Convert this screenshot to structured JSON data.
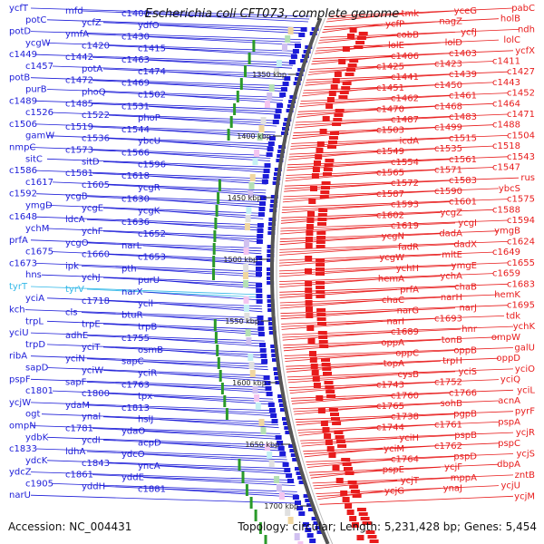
{
  "title": "Escherichia coli CFT073, complete genome",
  "footer": {
    "accession": "Accession: NC_004431",
    "summary": "Topology: circular; Length: 5,231,428 bp; Genes: 5,454"
  },
  "colors": {
    "reverse_strand": "#1c1cd8",
    "forward_strand": "#e81c1c",
    "highlight_gene": "#33b8e8",
    "backbone": "#555555"
  },
  "kbp_ticks": [
    "1350 kbp",
    "1400 kbp",
    "1450 kbp",
    "1500 kbp",
    "1550 kbp",
    "1600 kbp",
    "1650 kbp",
    "1700 kbp"
  ],
  "left_genes": [
    "ycfT",
    "mfd",
    "c1400",
    "potC",
    "ycfZ",
    "ydfO",
    "potD",
    "ymfA",
    "c1430",
    "ycgW",
    "c1420",
    "c1415",
    "c1449",
    "c1442",
    "c1463",
    "c1457",
    "potA",
    "c1474",
    "potB",
    "c1472",
    "c1469",
    "purB",
    "phoQ",
    "c1502",
    "c1489",
    "c1485",
    "c1531",
    "c1526",
    "c1522",
    "phoP",
    "c1506",
    "c1519",
    "c1544",
    "gamW",
    "c1536",
    "ybcU",
    "nmpC",
    "c1573",
    "c1566",
    "sitC",
    "sitD",
    "c1596",
    "c1586",
    "c1581",
    "c1618",
    "c1617",
    "c1605",
    "ycgR",
    "c1592",
    "ycgB",
    "c1630",
    "ymgD",
    "ycgE",
    "ycgK",
    "c1648",
    "ldcA",
    "c1636",
    "ychM",
    "ychF",
    "c1652",
    "prfA",
    "ycgO",
    "narL",
    "c1675",
    "c1660",
    "c1653",
    "c1673",
    "ipk",
    "pth",
    "hns",
    "ychJ",
    "purU",
    "tyrT",
    "tyrV",
    "narX",
    "yciA",
    "c1718",
    "ycil",
    "kch",
    "cls",
    "btuR",
    "trpL",
    "trpE",
    "trpB",
    "yciU",
    "adhE",
    "c1755",
    "trpD",
    "yciT",
    "osmB",
    "ribA",
    "yciN",
    "sapC",
    "sapD",
    "yciW",
    "yciR",
    "pspF",
    "sapF",
    "c1763",
    "c1801",
    "c1800",
    "tpx",
    "ycjW",
    "ydaM",
    "c1813",
    "ogt",
    "ynal",
    "hslJ",
    "ompN",
    "c1781",
    "ydaO",
    "ydbK",
    "ycdI",
    "acpD",
    "c1833",
    "ldhA",
    "ydcO",
    "ydcK",
    "c1843",
    "yncA",
    "ydcZ",
    "c1861",
    "yddE",
    "c1905",
    "yddH",
    "c1881",
    "narU"
  ],
  "right_genes": [
    "pabC",
    "yceG",
    "tmk",
    "holB",
    "nagZ",
    "ycfP",
    "ndh",
    "ycfJ",
    "cobB",
    "lolC",
    "lolD",
    "lolE",
    "ycfX",
    "c1403",
    "c1406",
    "c1411",
    "c1423",
    "c1425",
    "c1427",
    "c1439",
    "c1441",
    "c1443",
    "c1450",
    "c1451",
    "c1452",
    "c1461",
    "c1462",
    "c1464",
    "c1468",
    "c1470",
    "c1471",
    "c1483",
    "c1487",
    "c1488",
    "c1499",
    "c1503",
    "c1504",
    "c1515",
    "icdA",
    "c1518",
    "c1535",
    "c1549",
    "c1543",
    "c1561",
    "c1554",
    "c1547",
    "c1571",
    "c1565",
    "rus",
    "c1583",
    "c1572",
    "ybcS",
    "c1590",
    "c1587",
    "c1575",
    "c1601",
    "c1593",
    "c1588",
    "ycgZ",
    "c1602",
    "c1594",
    "ycgI",
    "c1619",
    "ymgB",
    "dadA",
    "ycgN",
    "c1624",
    "dadX",
    "fadR",
    "c1649",
    "mltE",
    "ycgW",
    "c1655",
    "ymgE",
    "ychH",
    "c1659",
    "ychA",
    "hemA",
    "c1683",
    "chaB",
    "prfA",
    "hemK",
    "narH",
    "chaC",
    "c1695",
    "narJ",
    "narG",
    "tdk",
    "c1693",
    "narI",
    "ychK",
    "hnr",
    "c1689",
    "ompW",
    "tonB",
    "oppA",
    "galU",
    "oppB",
    "oppC",
    "oppD",
    "trpH",
    "topA",
    "yciO",
    "yciS",
    "cysB",
    "yciQ",
    "c1752",
    "c1743",
    "yciL",
    "c1766",
    "c1760",
    "acnA",
    "sohB",
    "c1765",
    "pyrF",
    "pgpB",
    "c1738",
    "pspA",
    "c1761",
    "c1744",
    "ycjR",
    "pspB",
    "yciH",
    "pspC",
    "c1762",
    "yciM",
    "ycjS",
    "pspD",
    "c1764",
    "dbpA",
    "ycjF",
    "pspE",
    "zntB",
    "mppA",
    "ycjT",
    "ycjU",
    "ynaJ",
    "ycjG",
    "ycjM"
  ]
}
